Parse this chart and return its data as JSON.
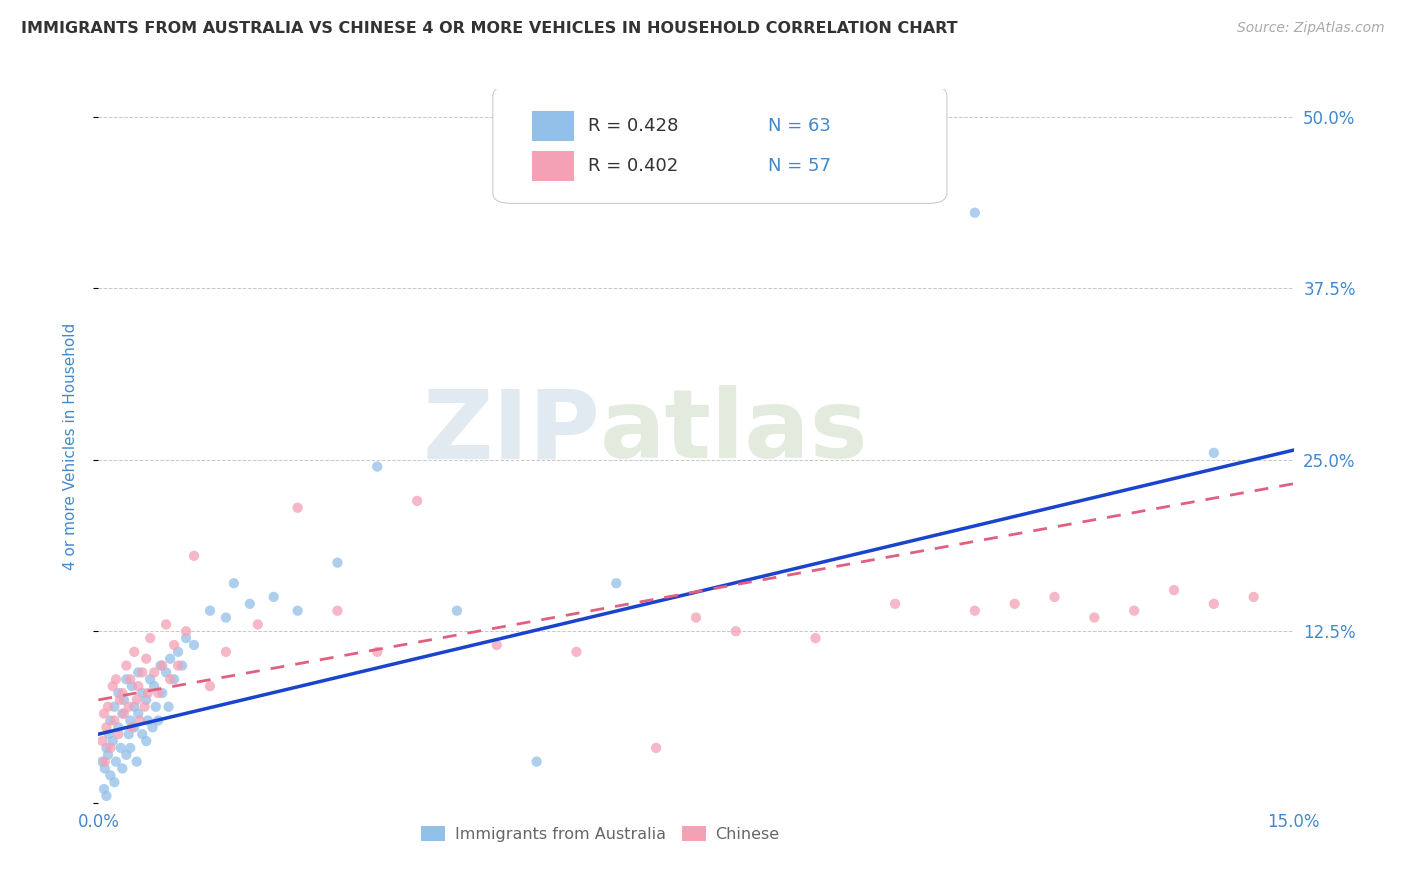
{
  "title": "IMMIGRANTS FROM AUSTRALIA VS CHINESE 4 OR MORE VEHICLES IN HOUSEHOLD CORRELATION CHART",
  "source": "Source: ZipAtlas.com",
  "ylabel": "4 or more Vehicles in Household",
  "xlim": [
    0.0,
    15.0
  ],
  "ylim": [
    0.0,
    52.0
  ],
  "ytick_values": [
    0.0,
    12.5,
    25.0,
    37.5,
    50.0
  ],
  "grid_color": "#c8c8c8",
  "background_color": "#ffffff",
  "watermark_zip": "ZIP",
  "watermark_atlas": "atlas",
  "legend_r1": "R = 0.428",
  "legend_n1": "N = 63",
  "legend_r2": "R = 0.402",
  "legend_n2": "N = 57",
  "series1_color": "#92c0e8",
  "series2_color": "#f4a0b5",
  "line1_color": "#1a44cc",
  "line2_color": "#e06080",
  "legend_label1": "Immigrants from Australia",
  "legend_label2": "Chinese",
  "title_color": "#333333",
  "axis_label_color": "#4488cc",
  "line1_intercept": 5.0,
  "line1_slope": 1.38,
  "line2_intercept": 7.5,
  "line2_slope": 1.05,
  "series1_x": [
    0.05,
    0.07,
    0.08,
    0.1,
    0.1,
    0.12,
    0.13,
    0.15,
    0.15,
    0.18,
    0.2,
    0.2,
    0.22,
    0.25,
    0.25,
    0.28,
    0.3,
    0.3,
    0.32,
    0.35,
    0.35,
    0.38,
    0.4,
    0.4,
    0.42,
    0.45,
    0.45,
    0.48,
    0.5,
    0.5,
    0.55,
    0.55,
    0.6,
    0.6,
    0.62,
    0.65,
    0.68,
    0.7,
    0.72,
    0.75,
    0.78,
    0.8,
    0.85,
    0.88,
    0.9,
    0.95,
    1.0,
    1.05,
    1.1,
    1.2,
    1.4,
    1.6,
    1.7,
    1.9,
    2.2,
    2.5,
    3.0,
    3.5,
    4.5,
    5.5,
    6.5,
    11.0,
    14.0
  ],
  "series1_y": [
    3.0,
    1.0,
    2.5,
    4.0,
    0.5,
    3.5,
    5.0,
    2.0,
    6.0,
    4.5,
    1.5,
    7.0,
    3.0,
    5.5,
    8.0,
    4.0,
    6.5,
    2.5,
    7.5,
    3.5,
    9.0,
    5.0,
    6.0,
    4.0,
    8.5,
    5.5,
    7.0,
    3.0,
    6.5,
    9.5,
    5.0,
    8.0,
    4.5,
    7.5,
    6.0,
    9.0,
    5.5,
    8.5,
    7.0,
    6.0,
    10.0,
    8.0,
    9.5,
    7.0,
    10.5,
    9.0,
    11.0,
    10.0,
    12.0,
    11.5,
    14.0,
    13.5,
    16.0,
    14.5,
    15.0,
    14.0,
    17.5,
    24.5,
    14.0,
    3.0,
    16.0,
    43.0,
    25.5
  ],
  "series2_x": [
    0.05,
    0.07,
    0.08,
    0.1,
    0.12,
    0.15,
    0.18,
    0.2,
    0.22,
    0.25,
    0.27,
    0.3,
    0.32,
    0.35,
    0.38,
    0.4,
    0.42,
    0.45,
    0.48,
    0.5,
    0.52,
    0.55,
    0.58,
    0.6,
    0.62,
    0.65,
    0.7,
    0.75,
    0.8,
    0.85,
    0.9,
    0.95,
    1.0,
    1.1,
    1.2,
    1.4,
    1.6,
    2.0,
    2.5,
    3.0,
    3.5,
    4.0,
    5.0,
    6.0,
    7.0,
    7.5,
    8.0,
    9.0,
    10.0,
    11.0,
    11.5,
    12.0,
    12.5,
    13.0,
    13.5,
    14.0,
    14.5
  ],
  "series2_y": [
    4.5,
    6.5,
    3.0,
    5.5,
    7.0,
    4.0,
    8.5,
    6.0,
    9.0,
    5.0,
    7.5,
    8.0,
    6.5,
    10.0,
    7.0,
    9.0,
    5.5,
    11.0,
    7.5,
    8.5,
    6.0,
    9.5,
    7.0,
    10.5,
    8.0,
    12.0,
    9.5,
    8.0,
    10.0,
    13.0,
    9.0,
    11.5,
    10.0,
    12.5,
    18.0,
    8.5,
    11.0,
    13.0,
    21.5,
    14.0,
    11.0,
    22.0,
    11.5,
    11.0,
    4.0,
    13.5,
    12.5,
    12.0,
    14.5,
    14.0,
    14.5,
    15.0,
    13.5,
    14.0,
    15.5,
    14.5,
    15.0
  ]
}
